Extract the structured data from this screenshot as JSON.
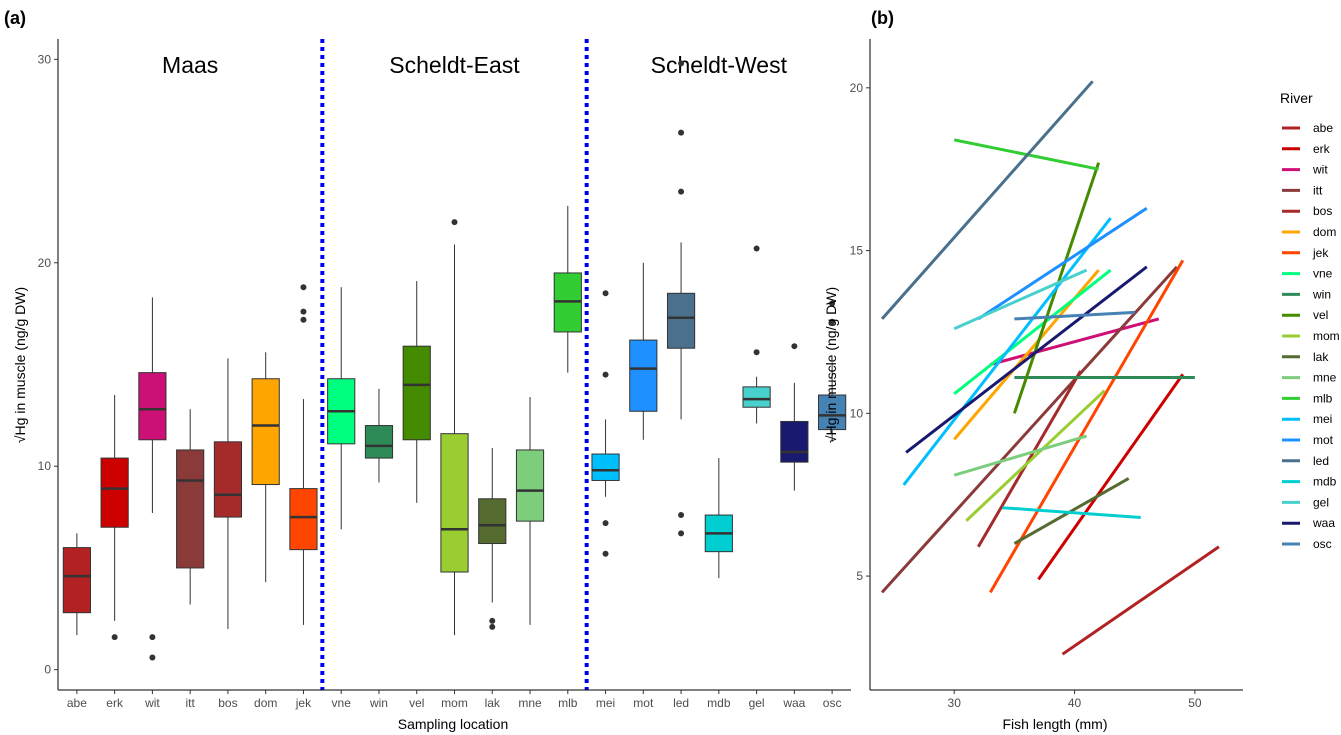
{
  "chart_data": [
    {
      "type": "boxplot",
      "panel_label": "(a)",
      "xlabel": "Sampling location",
      "ylabel": "Hg in muscle (ng/g DW)",
      "ylabel_sqrt": "√",
      "ylim": [
        -1,
        31
      ],
      "yticks": [
        0,
        10,
        20,
        30
      ],
      "regions": [
        {
          "label": "Maas",
          "first": "abe",
          "last": "jek"
        },
        {
          "label": "Scheldt-East",
          "first": "vne",
          "last": "mlb"
        },
        {
          "label": "Scheldt-West",
          "first": "mei",
          "last": "osc"
        }
      ],
      "boxes": [
        {
          "category": "abe",
          "color": "#B22222",
          "whisker_low": 1.7,
          "q1": 2.8,
          "median": 4.6,
          "q3": 6.0,
          "whisker_high": 6.7,
          "outliers": []
        },
        {
          "category": "erk",
          "color": "#CD0000",
          "whisker_low": 2.4,
          "q1": 7.0,
          "median": 8.9,
          "q3": 10.4,
          "whisker_high": 13.5,
          "outliers": [
            1.6
          ]
        },
        {
          "category": "wit",
          "color": "#CD1076",
          "whisker_low": 7.7,
          "q1": 11.3,
          "median": 12.8,
          "q3": 14.6,
          "whisker_high": 18.3,
          "outliers": [
            1.6,
            0.6
          ]
        },
        {
          "category": "itt",
          "color": "#8B3A3A",
          "whisker_low": 3.2,
          "q1": 5.0,
          "median": 9.3,
          "q3": 10.8,
          "whisker_high": 12.8,
          "outliers": []
        },
        {
          "category": "bos",
          "color": "#A52A2A",
          "whisker_low": 2.0,
          "q1": 7.5,
          "median": 8.6,
          "q3": 11.2,
          "whisker_high": 15.3,
          "outliers": []
        },
        {
          "category": "dom",
          "color": "#FFA500",
          "whisker_low": 4.3,
          "q1": 9.1,
          "median": 12.0,
          "q3": 14.3,
          "whisker_high": 15.6,
          "outliers": []
        },
        {
          "category": "jek",
          "color": "#FF4500",
          "whisker_low": 2.2,
          "q1": 5.9,
          "median": 7.5,
          "q3": 8.9,
          "whisker_high": 13.3,
          "outliers": [
            18.8,
            17.6,
            17.2
          ]
        },
        {
          "category": "vne",
          "color": "#00FF7F",
          "whisker_low": 6.9,
          "q1": 11.1,
          "median": 12.7,
          "q3": 14.3,
          "whisker_high": 18.8,
          "outliers": []
        },
        {
          "category": "win",
          "color": "#2E8B57",
          "whisker_low": 9.2,
          "q1": 10.4,
          "median": 11.0,
          "q3": 12.0,
          "whisker_high": 13.8,
          "outliers": []
        },
        {
          "category": "vel",
          "color": "#458B00",
          "whisker_low": 8.2,
          "q1": 11.3,
          "median": 14.0,
          "q3": 15.9,
          "whisker_high": 19.1,
          "outliers": []
        },
        {
          "category": "mom",
          "color": "#9ACD32",
          "whisker_low": 1.7,
          "q1": 4.8,
          "median": 6.9,
          "q3": 11.6,
          "whisker_high": 20.9,
          "outliers": [
            22.0
          ]
        },
        {
          "category": "lak",
          "color": "#556B2F",
          "whisker_low": 3.3,
          "q1": 6.2,
          "median": 7.1,
          "q3": 8.4,
          "whisker_high": 10.9,
          "outliers": [
            2.4,
            2.1
          ]
        },
        {
          "category": "mne",
          "color": "#7CCD7C",
          "whisker_low": 2.2,
          "q1": 7.3,
          "median": 8.8,
          "q3": 10.8,
          "whisker_high": 13.4,
          "outliers": []
        },
        {
          "category": "mlb",
          "color": "#32CD32",
          "whisker_low": 14.6,
          "q1": 16.6,
          "median": 18.1,
          "q3": 19.5,
          "whisker_high": 22.8,
          "outliers": []
        },
        {
          "category": "mei",
          "color": "#00BFFF",
          "whisker_low": 8.5,
          "q1": 9.3,
          "median": 9.8,
          "q3": 10.6,
          "whisker_high": 12.3,
          "outliers": [
            18.5,
            14.5,
            7.2,
            5.7
          ]
        },
        {
          "category": "mot",
          "color": "#1E90FF",
          "whisker_low": 11.3,
          "q1": 12.7,
          "median": 14.8,
          "q3": 16.2,
          "whisker_high": 20.0,
          "outliers": []
        },
        {
          "category": "led",
          "color": "#4A708B",
          "whisker_low": 12.3,
          "q1": 15.8,
          "median": 17.3,
          "q3": 18.5,
          "whisker_high": 21.0,
          "outliers": [
            29.8,
            26.4,
            23.5,
            7.6,
            6.7
          ]
        },
        {
          "category": "mdb",
          "color": "#00CED1",
          "whisker_low": 4.5,
          "q1": 5.8,
          "median": 6.7,
          "q3": 7.6,
          "whisker_high": 10.4,
          "outliers": []
        },
        {
          "category": "gel",
          "color": "#48D1CC",
          "whisker_low": 12.1,
          "q1": 12.9,
          "median": 13.3,
          "q3": 13.9,
          "whisker_high": 14.4,
          "outliers": [
            20.7,
            15.6
          ]
        },
        {
          "category": "waa",
          "color": "#191970",
          "whisker_low": 8.8,
          "q1": 10.2,
          "median": 10.7,
          "q3": 12.2,
          "whisker_high": 14.1,
          "outliers": [
            15.9
          ]
        },
        {
          "category": "osc",
          "color": "#4682B4",
          "whisker_low": 11.2,
          "q1": 11.8,
          "median": 12.5,
          "q3": 13.5,
          "whisker_high": 15.1,
          "outliers": [
            18.0,
            17.1
          ]
        }
      ]
    },
    {
      "type": "line",
      "panel_label": "(b)",
      "xlabel": "Fish length (mm)",
      "ylabel": "Hg in muscle (ng/g DW)",
      "ylabel_sqrt": "√",
      "xlim": [
        23,
        54
      ],
      "ylim": [
        1.5,
        21.5
      ],
      "xticks": [
        30,
        40,
        50
      ],
      "yticks": [
        5,
        10,
        15,
        20
      ],
      "legend_title": "River",
      "legend_position": "right",
      "series": [
        {
          "name": "abe",
          "color": "#B22222",
          "x": [
            39.0,
            52.0
          ],
          "y": [
            2.6,
            5.9
          ]
        },
        {
          "name": "erk",
          "color": "#CD0000",
          "x": [
            37.0,
            49.0
          ],
          "y": [
            4.9,
            11.2
          ]
        },
        {
          "name": "wit",
          "color": "#CD1076",
          "x": [
            33.0,
            47.0
          ],
          "y": [
            11.5,
            12.9
          ]
        },
        {
          "name": "itt",
          "color": "#8B3A3A",
          "x": [
            24.0,
            48.5
          ],
          "y": [
            4.5,
            14.5
          ]
        },
        {
          "name": "bos",
          "color": "#A52A2A",
          "x": [
            32.0,
            40.5
          ],
          "y": [
            5.9,
            11.3
          ]
        },
        {
          "name": "dom",
          "color": "#FFA500",
          "x": [
            30.0,
            42.0
          ],
          "y": [
            9.2,
            14.4
          ]
        },
        {
          "name": "jek",
          "color": "#FF4500",
          "x": [
            33.0,
            49.0
          ],
          "y": [
            4.5,
            14.7
          ]
        },
        {
          "name": "vne",
          "color": "#00FF7F",
          "x": [
            30.0,
            43.0
          ],
          "y": [
            10.6,
            14.4
          ]
        },
        {
          "name": "win",
          "color": "#2E8B57",
          "x": [
            35.0,
            50.0
          ],
          "y": [
            11.1,
            11.1
          ]
        },
        {
          "name": "vel",
          "color": "#458B00",
          "x": [
            35.0,
            42.0
          ],
          "y": [
            10.0,
            17.7
          ]
        },
        {
          "name": "mom",
          "color": "#9ACD32",
          "x": [
            31.0,
            42.5
          ],
          "y": [
            6.7,
            10.7
          ]
        },
        {
          "name": "lak",
          "color": "#556B2F",
          "x": [
            35.0,
            44.5
          ],
          "y": [
            6.0,
            8.0
          ]
        },
        {
          "name": "mne",
          "color": "#7CCD7C",
          "x": [
            30.0,
            41.0
          ],
          "y": [
            8.1,
            9.3
          ]
        },
        {
          "name": "mlb",
          "color": "#32CD32",
          "x": [
            30.0,
            42.0
          ],
          "y": [
            18.4,
            17.5
          ]
        },
        {
          "name": "mei",
          "color": "#00BFFF",
          "x": [
            25.8,
            43.0
          ],
          "y": [
            7.8,
            16.0
          ]
        },
        {
          "name": "mot",
          "color": "#1E90FF",
          "x": [
            32.0,
            46.0
          ],
          "y": [
            12.9,
            16.3
          ]
        },
        {
          "name": "led",
          "color": "#4A708B",
          "x": [
            24.0,
            41.5
          ],
          "y": [
            12.9,
            20.2
          ]
        },
        {
          "name": "mdb",
          "color": "#00CED1",
          "x": [
            34.0,
            45.5
          ],
          "y": [
            7.1,
            6.8
          ]
        },
        {
          "name": "gel",
          "color": "#48D1CC",
          "x": [
            30.0,
            41.0
          ],
          "y": [
            12.6,
            14.4
          ]
        },
        {
          "name": "waa",
          "color": "#191970",
          "x": [
            26.0,
            46.0
          ],
          "y": [
            8.8,
            14.5
          ]
        },
        {
          "name": "osc",
          "color": "#4682B4",
          "x": [
            35.0,
            45.0
          ],
          "y": [
            12.9,
            13.1
          ]
        }
      ]
    }
  ]
}
